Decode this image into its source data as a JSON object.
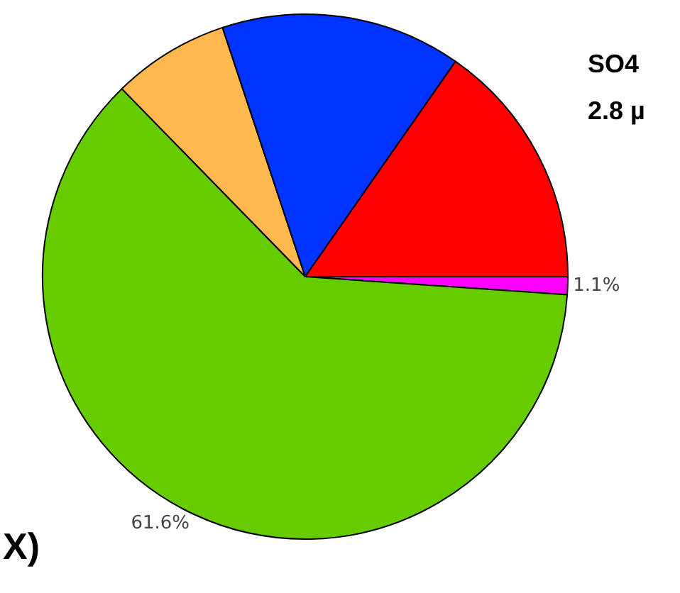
{
  "chart_data": {
    "type": "pie",
    "categories": [
      null,
      null,
      null,
      null,
      null
    ],
    "values": [
      1.1,
      61.6,
      7.2,
      14.8,
      15.3
    ],
    "colors": [
      "#ff00ff",
      "#66cc00",
      "#ffb84d",
      "#0033ff",
      "#ff0000"
    ],
    "value_labels": [
      "1.1%",
      "61.6%",
      null,
      null,
      null
    ],
    "annotations": [
      "SO4",
      "2.8 µ",
      "X)"
    ]
  }
}
